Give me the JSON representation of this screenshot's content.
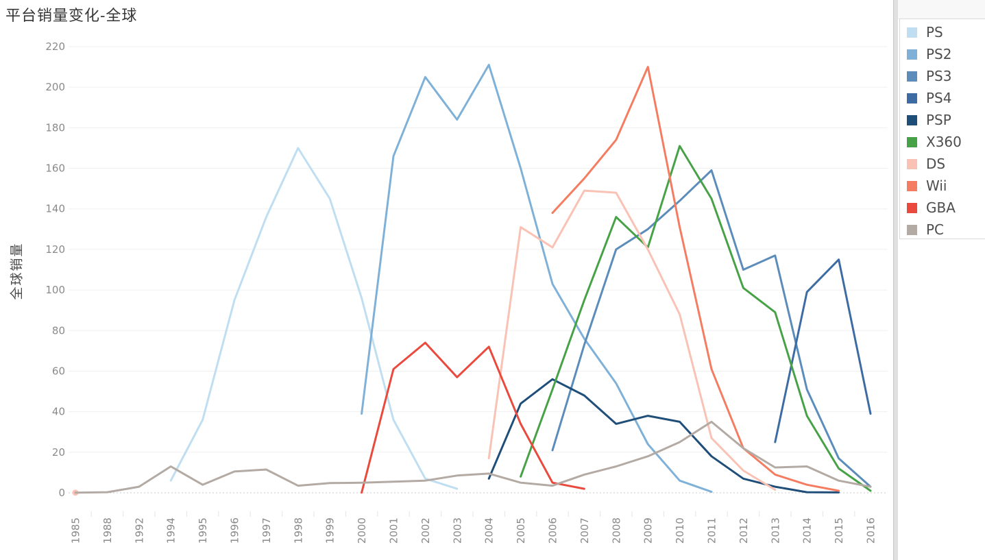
{
  "title": "平台销量变化-全球",
  "y_axis_title": "全球销量",
  "legend": {
    "items": [
      {
        "label": "PS",
        "color": "#bfdef2"
      },
      {
        "label": "PS2",
        "color": "#7fb1d8"
      },
      {
        "label": "PS3",
        "color": "#5b8cba"
      },
      {
        "label": "PS4",
        "color": "#3d6ba3"
      },
      {
        "label": "PSP",
        "color": "#1f4e79"
      },
      {
        "label": "X360",
        "color": "#47a247"
      },
      {
        "label": "DS",
        "color": "#f9c2b4"
      },
      {
        "label": "Wii",
        "color": "#f47d61"
      },
      {
        "label": "GBA",
        "color": "#e94a3d"
      },
      {
        "label": "PC",
        "color": "#b4aaa4"
      }
    ]
  },
  "chart_data": {
    "type": "line",
    "title": "平台销量变化-全球",
    "xlabel": "",
    "ylabel": "全球销量",
    "x_categories": [
      1985,
      1988,
      1992,
      1994,
      1995,
      1996,
      1997,
      1998,
      1999,
      2000,
      2001,
      2002,
      2003,
      2004,
      2005,
      2006,
      2007,
      2008,
      2009,
      2010,
      2011,
      2012,
      2013,
      2014,
      2015,
      2016
    ],
    "ylim": [
      0,
      220
    ],
    "y_tick_step": 20,
    "grid": "horizontal",
    "zero_line": "dashed",
    "legend_position": "right",
    "grid_color": "#f0f0f0",
    "zero_line_color": "#c9c9c9",
    "tick_label_color": "#8a8a8a",
    "series": [
      {
        "name": "PS",
        "color": "#bfdef2",
        "points": [
          [
            1994,
            6
          ],
          [
            1995,
            36
          ],
          [
            1996,
            95
          ],
          [
            1997,
            136
          ],
          [
            1998,
            170
          ],
          [
            1999,
            145
          ],
          [
            2000,
            96
          ],
          [
            2001,
            36
          ],
          [
            2002,
            7
          ],
          [
            2003,
            2
          ]
        ]
      },
      {
        "name": "PS2",
        "color": "#7fb1d8",
        "points": [
          [
            2000,
            39
          ],
          [
            2001,
            166
          ],
          [
            2002,
            205
          ],
          [
            2003,
            184
          ],
          [
            2004,
            211
          ],
          [
            2005,
            160
          ],
          [
            2006,
            103
          ],
          [
            2007,
            76
          ],
          [
            2008,
            54
          ],
          [
            2009,
            24
          ],
          [
            2010,
            6
          ],
          [
            2011,
            0.5
          ]
        ]
      },
      {
        "name": "PS3",
        "color": "#5b8cba",
        "points": [
          [
            2006,
            21
          ],
          [
            2007,
            73
          ],
          [
            2008,
            120
          ],
          [
            2009,
            130
          ],
          [
            2010,
            144
          ],
          [
            2011,
            159
          ],
          [
            2012,
            110
          ],
          [
            2013,
            117
          ],
          [
            2014,
            51
          ],
          [
            2015,
            17
          ],
          [
            2016,
            3
          ]
        ]
      },
      {
        "name": "PS4",
        "color": "#3d6ba3",
        "points": [
          [
            2013,
            25
          ],
          [
            2014,
            99
          ],
          [
            2015,
            115
          ],
          [
            2016,
            39
          ]
        ]
      },
      {
        "name": "PSP",
        "color": "#1f4e79",
        "points": [
          [
            2004,
            7
          ],
          [
            2005,
            44
          ],
          [
            2006,
            56
          ],
          [
            2007,
            48
          ],
          [
            2008,
            34
          ],
          [
            2009,
            38
          ],
          [
            2010,
            35
          ],
          [
            2011,
            18
          ],
          [
            2012,
            7
          ],
          [
            2013,
            3
          ],
          [
            2014,
            0.3
          ],
          [
            2015,
            0.2
          ]
        ]
      },
      {
        "name": "X360",
        "color": "#47a247",
        "points": [
          [
            2005,
            8
          ],
          [
            2006,
            51
          ],
          [
            2007,
            95
          ],
          [
            2008,
            136
          ],
          [
            2009,
            121
          ],
          [
            2010,
            171
          ],
          [
            2011,
            145
          ],
          [
            2012,
            101
          ],
          [
            2013,
            89
          ],
          [
            2014,
            38
          ],
          [
            2015,
            12
          ],
          [
            2016,
            1
          ]
        ]
      },
      {
        "name": "DS",
        "color": "#f9c2b4",
        "points": [
          [
            1985,
            0.1
          ],
          [
            2004,
            17
          ],
          [
            2005,
            131
          ],
          [
            2006,
            121
          ],
          [
            2007,
            149
          ],
          [
            2008,
            148
          ],
          [
            2009,
            120
          ],
          [
            2010,
            88
          ],
          [
            2011,
            27
          ],
          [
            2012,
            11
          ],
          [
            2013,
            1.5
          ]
        ]
      },
      {
        "name": "Wii",
        "color": "#f47d61",
        "points": [
          [
            2006,
            138
          ],
          [
            2007,
            155
          ],
          [
            2008,
            174
          ],
          [
            2009,
            210
          ],
          [
            2010,
            131
          ],
          [
            2011,
            61
          ],
          [
            2012,
            22
          ],
          [
            2013,
            9
          ],
          [
            2014,
            4
          ],
          [
            2015,
            1
          ]
        ]
      },
      {
        "name": "GBA",
        "color": "#e94a3d",
        "points": [
          [
            2000,
            0.1
          ],
          [
            2001,
            61
          ],
          [
            2002,
            74
          ],
          [
            2003,
            57
          ],
          [
            2004,
            72
          ],
          [
            2005,
            34
          ],
          [
            2006,
            5
          ],
          [
            2007,
            2
          ]
        ]
      },
      {
        "name": "PC",
        "color": "#b4aaa4",
        "points": [
          [
            1985,
            0.1
          ],
          [
            1988,
            0.3
          ],
          [
            1992,
            3
          ],
          [
            1994,
            13
          ],
          [
            1995,
            4
          ],
          [
            1996,
            10.5
          ],
          [
            1997,
            11.5
          ],
          [
            1998,
            3.5
          ],
          [
            1999,
            4.8
          ],
          [
            2000,
            5
          ],
          [
            2001,
            5.5
          ],
          [
            2002,
            6
          ],
          [
            2003,
            8.5
          ],
          [
            2004,
            9.5
          ],
          [
            2005,
            5
          ],
          [
            2006,
            3.5
          ],
          [
            2007,
            9
          ],
          [
            2008,
            13
          ],
          [
            2009,
            18
          ],
          [
            2010,
            25
          ],
          [
            2011,
            35
          ],
          [
            2012,
            22
          ],
          [
            2013,
            12.5
          ],
          [
            2014,
            13
          ],
          [
            2015,
            6
          ],
          [
            2016,
            3
          ]
        ]
      }
    ]
  }
}
